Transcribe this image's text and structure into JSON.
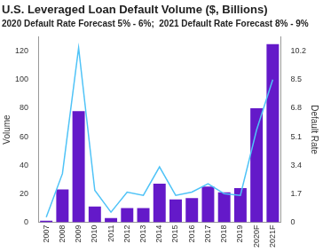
{
  "chart_data": {
    "type": "bar",
    "title": "U.S. Leveraged Loan Default Volume ($, Billions)",
    "subtitle": "2020 Default Rate Forecast 5% - 6%;  2021 Default Rate Forecast 8% - 9%",
    "y_label": "Volume",
    "y2_label": "Default Rate",
    "categories": [
      "2007",
      "2008",
      "2009",
      "2010",
      "2011",
      "2012",
      "2013",
      "2014",
      "2015",
      "2016",
      "2017",
      "2018",
      "2019",
      "2020F",
      "2021F"
    ],
    "series": [
      {
        "name": "Volume",
        "type": "bar",
        "color": "#6419c9",
        "values": [
          1,
          23,
          78,
          11,
          3,
          10,
          10,
          27,
          16,
          17,
          25,
          21,
          24,
          80,
          125
        ]
      },
      {
        "name": "Default Rate",
        "type": "line",
        "color": "#4fc3f7",
        "axis": "y2",
        "values": [
          0.3,
          2.9,
          10.4,
          1.9,
          0.6,
          1.8,
          1.6,
          3.3,
          1.6,
          1.8,
          2.3,
          1.7,
          1.6,
          5.5,
          8.5
        ]
      }
    ],
    "ylim": [
      0,
      130
    ],
    "yticks": [
      0,
      20,
      40,
      60,
      80,
      100,
      120
    ],
    "y2lim": [
      0,
      11.05
    ],
    "y2ticks": [
      0,
      1.7,
      3.4,
      5.1,
      6.8,
      8.5,
      10.2
    ],
    "grid": false
  }
}
